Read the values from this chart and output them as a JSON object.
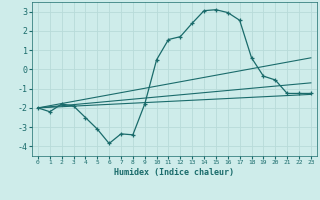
{
  "xlabel": "Humidex (Indice chaleur)",
  "background_color": "#ceecea",
  "grid_color": "#b8dbd9",
  "line_color": "#1a6b6b",
  "xlim": [
    -0.5,
    23.5
  ],
  "ylim": [
    -4.5,
    3.5
  ],
  "yticks": [
    -4,
    -3,
    -2,
    -1,
    0,
    1,
    2,
    3
  ],
  "xticks": [
    0,
    1,
    2,
    3,
    4,
    5,
    6,
    7,
    8,
    9,
    10,
    11,
    12,
    13,
    14,
    15,
    16,
    17,
    18,
    19,
    20,
    21,
    22,
    23
  ],
  "main_x": [
    0,
    1,
    2,
    3,
    4,
    5,
    6,
    7,
    8,
    9,
    10,
    11,
    12,
    13,
    14,
    15,
    16,
    17,
    18,
    19,
    20,
    21,
    22,
    23
  ],
  "main_y": [
    -2.0,
    -2.2,
    -1.8,
    -1.9,
    -2.5,
    -3.1,
    -3.85,
    -3.35,
    -3.4,
    -1.8,
    0.5,
    1.55,
    1.7,
    2.4,
    3.05,
    3.1,
    2.95,
    2.55,
    0.6,
    -0.35,
    -0.55,
    -1.25,
    -1.25,
    -1.25
  ],
  "line1_x": [
    0,
    23
  ],
  "line1_y": [
    -2.0,
    0.6
  ],
  "line2_x": [
    0,
    23
  ],
  "line2_y": [
    -2.0,
    -0.7
  ],
  "line3_x": [
    0,
    23
  ],
  "line3_y": [
    -2.0,
    -1.3
  ]
}
